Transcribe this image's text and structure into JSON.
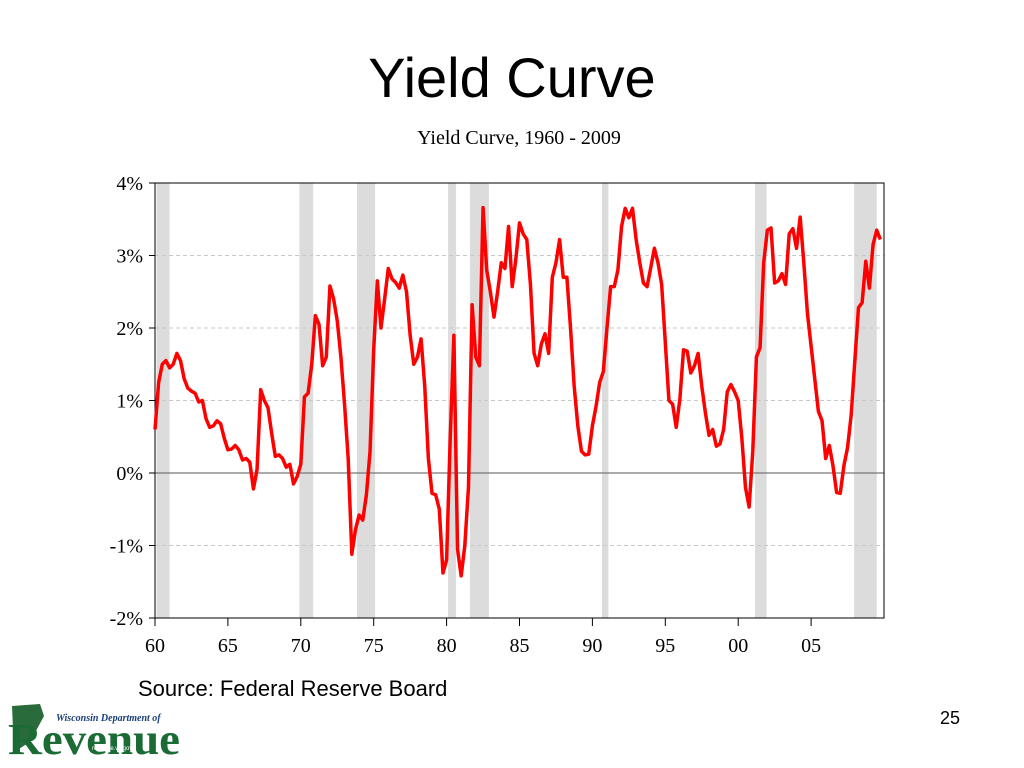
{
  "slide_title": "Yield Curve",
  "source": "Source: Federal Reserve Board",
  "page_number": "25",
  "logo": {
    "top": "Wisconsin Department of",
    "name": "Revenue",
    "url": "revenue.wi.gov"
  },
  "chart_data": {
    "type": "line",
    "title": "Yield Curve, 1960 - 2009",
    "color": "#ff0000",
    "x": [
      1960,
      1960.25,
      1960.5,
      1960.75,
      1961,
      1961.25,
      1961.5,
      1961.75,
      1962,
      1962.25,
      1962.5,
      1962.75,
      1963,
      1963.25,
      1963.5,
      1963.75,
      1964,
      1964.25,
      1964.5,
      1964.75,
      1965,
      1965.25,
      1965.5,
      1965.75,
      1966,
      1966.25,
      1966.5,
      1966.75,
      1967,
      1967.25,
      1967.5,
      1967.75,
      1968,
      1968.25,
      1968.5,
      1968.75,
      1969,
      1969.25,
      1969.5,
      1969.75,
      1970,
      1970.25,
      1970.5,
      1970.75,
      1971,
      1971.25,
      1971.5,
      1971.75,
      1972,
      1972.25,
      1972.5,
      1972.75,
      1973,
      1973.25,
      1973.5,
      1973.75,
      1974,
      1974.25,
      1974.5,
      1974.75,
      1975,
      1975.25,
      1975.5,
      1975.75,
      1976,
      1976.25,
      1976.5,
      1976.75,
      1977,
      1977.25,
      1977.5,
      1977.75,
      1978,
      1978.25,
      1978.5,
      1978.75,
      1979,
      1979.25,
      1979.5,
      1979.75,
      1980,
      1980.25,
      1980.5,
      1980.75,
      1981,
      1981.25,
      1981.5,
      1981.75,
      1982,
      1982.25,
      1982.5,
      1982.75,
      1983,
      1983.25,
      1983.5,
      1983.75,
      1984,
      1984.25,
      1984.5,
      1984.75,
      1985,
      1985.25,
      1985.5,
      1985.75,
      1986,
      1986.25,
      1986.5,
      1986.75,
      1987,
      1987.25,
      1987.5,
      1987.75,
      1988,
      1988.25,
      1988.5,
      1988.75,
      1989,
      1989.25,
      1989.5,
      1989.75,
      1990,
      1990.25,
      1990.5,
      1990.75,
      1991,
      1991.25,
      1991.5,
      1991.75,
      1992,
      1992.25,
      1992.5,
      1992.75,
      1993,
      1993.25,
      1993.5,
      1993.75,
      1994,
      1994.25,
      1994.5,
      1994.75,
      1995,
      1995.25,
      1995.5,
      1995.75,
      1996,
      1996.25,
      1996.5,
      1996.75,
      1997,
      1997.25,
      1997.5,
      1997.75,
      1998,
      1998.25,
      1998.5,
      1998.75,
      1999,
      1999.25,
      1999.5,
      1999.75,
      2000,
      2000.25,
      2000.5,
      2000.75,
      2001,
      2001.25,
      2001.5,
      2001.75,
      2002,
      2002.25,
      2002.5,
      2002.75,
      2003,
      2003.25,
      2003.5,
      2003.75,
      2004,
      2004.25,
      2004.5,
      2004.75,
      2005,
      2005.25,
      2005.5,
      2005.75,
      2006,
      2006.25,
      2006.5,
      2006.75,
      2007,
      2007.25,
      2007.5,
      2007.75,
      2008,
      2008.25,
      2008.5,
      2008.75,
      2009,
      2009.25,
      2009.5,
      2009.75
    ],
    "values": [
      0.6,
      1.25,
      1.5,
      1.55,
      1.45,
      1.5,
      1.65,
      1.55,
      1.3,
      1.17,
      1.13,
      1.1,
      0.98,
      1.0,
      0.75,
      0.63,
      0.65,
      0.72,
      0.68,
      0.48,
      0.32,
      0.33,
      0.38,
      0.32,
      0.18,
      0.2,
      0.15,
      -0.22,
      0.05,
      1.15,
      1.0,
      0.9,
      0.55,
      0.23,
      0.25,
      0.2,
      0.08,
      0.12,
      -0.15,
      -0.05,
      0.12,
      1.05,
      1.1,
      1.5,
      2.17,
      2.05,
      1.48,
      1.6,
      2.58,
      2.4,
      2.1,
      1.6,
      0.95,
      0.2,
      -1.12,
      -0.78,
      -0.58,
      -0.65,
      -0.3,
      0.3,
      1.7,
      2.65,
      2.0,
      2.4,
      2.82,
      2.68,
      2.63,
      2.55,
      2.73,
      2.5,
      1.9,
      1.5,
      1.6,
      1.85,
      1.2,
      0.2,
      -0.28,
      -0.3,
      -0.5,
      -1.38,
      -1.2,
      0.5,
      1.9,
      -1.05,
      -1.42,
      -1.0,
      -0.2,
      2.32,
      1.6,
      1.48,
      3.66,
      2.8,
      2.5,
      2.15,
      2.5,
      2.9,
      2.82,
      3.4,
      2.57,
      2.95,
      3.45,
      3.3,
      3.22,
      2.6,
      1.65,
      1.48,
      1.78,
      1.92,
      1.65,
      2.7,
      2.9,
      3.22,
      2.7,
      2.7,
      2.0,
      1.2,
      0.65,
      0.3,
      0.25,
      0.26,
      0.65,
      0.92,
      1.25,
      1.4,
      2.0,
      2.57,
      2.57,
      2.8,
      3.4,
      3.65,
      3.52,
      3.65,
      3.22,
      2.9,
      2.62,
      2.57,
      2.83,
      3.1,
      2.9,
      2.6,
      1.8,
      1.0,
      0.95,
      0.63,
      1.02,
      1.7,
      1.68,
      1.38,
      1.48,
      1.65,
      1.2,
      0.83,
      0.52,
      0.6,
      0.37,
      0.4,
      0.6,
      1.12,
      1.22,
      1.12,
      1.0,
      0.48,
      -0.2,
      -0.47,
      0.3,
      1.6,
      1.73,
      2.9,
      3.35,
      3.38,
      2.62,
      2.65,
      2.75,
      2.6,
      3.3,
      3.37,
      3.1,
      3.53,
      2.9,
      2.2,
      1.75,
      1.3,
      0.85,
      0.72,
      0.2,
      0.38,
      0.1,
      -0.27,
      -0.28,
      0.1,
      0.35,
      0.8,
      1.55,
      2.28,
      2.35,
      2.92,
      2.55,
      3.15,
      3.35,
      3.22
    ],
    "recessions": [
      [
        1960.1,
        1961.0
      ],
      [
        1969.9,
        1970.85
      ],
      [
        1973.85,
        1975.1
      ],
      [
        1980.1,
        1980.65
      ],
      [
        1981.6,
        1982.9
      ],
      [
        1990.65,
        1991.1
      ],
      [
        2001.15,
        2001.95
      ],
      [
        2007.95,
        2009.5
      ]
    ],
    "recession_color": "#dcdcdc",
    "xlim": [
      1960,
      2010
    ],
    "xticks": [
      {
        "value": 1960,
        "label": "60"
      },
      {
        "value": 1965,
        "label": "65"
      },
      {
        "value": 1970,
        "label": "70"
      },
      {
        "value": 1975,
        "label": "75"
      },
      {
        "value": 1980,
        "label": "80"
      },
      {
        "value": 1985,
        "label": "85"
      },
      {
        "value": 1990,
        "label": "90"
      },
      {
        "value": 1995,
        "label": "95"
      },
      {
        "value": 2000,
        "label": "00"
      },
      {
        "value": 2005,
        "label": "05"
      }
    ],
    "ylim": [
      -2,
      4
    ],
    "yticks": [
      {
        "value": -2,
        "label": "-2%"
      },
      {
        "value": -1,
        "label": "-1%"
      },
      {
        "value": 0,
        "label": "0%"
      },
      {
        "value": 1,
        "label": "1%"
      },
      {
        "value": 2,
        "label": "2%"
      },
      {
        "value": 3,
        "label": "3%"
      },
      {
        "value": 4,
        "label": "4%"
      }
    ],
    "grid": true
  }
}
